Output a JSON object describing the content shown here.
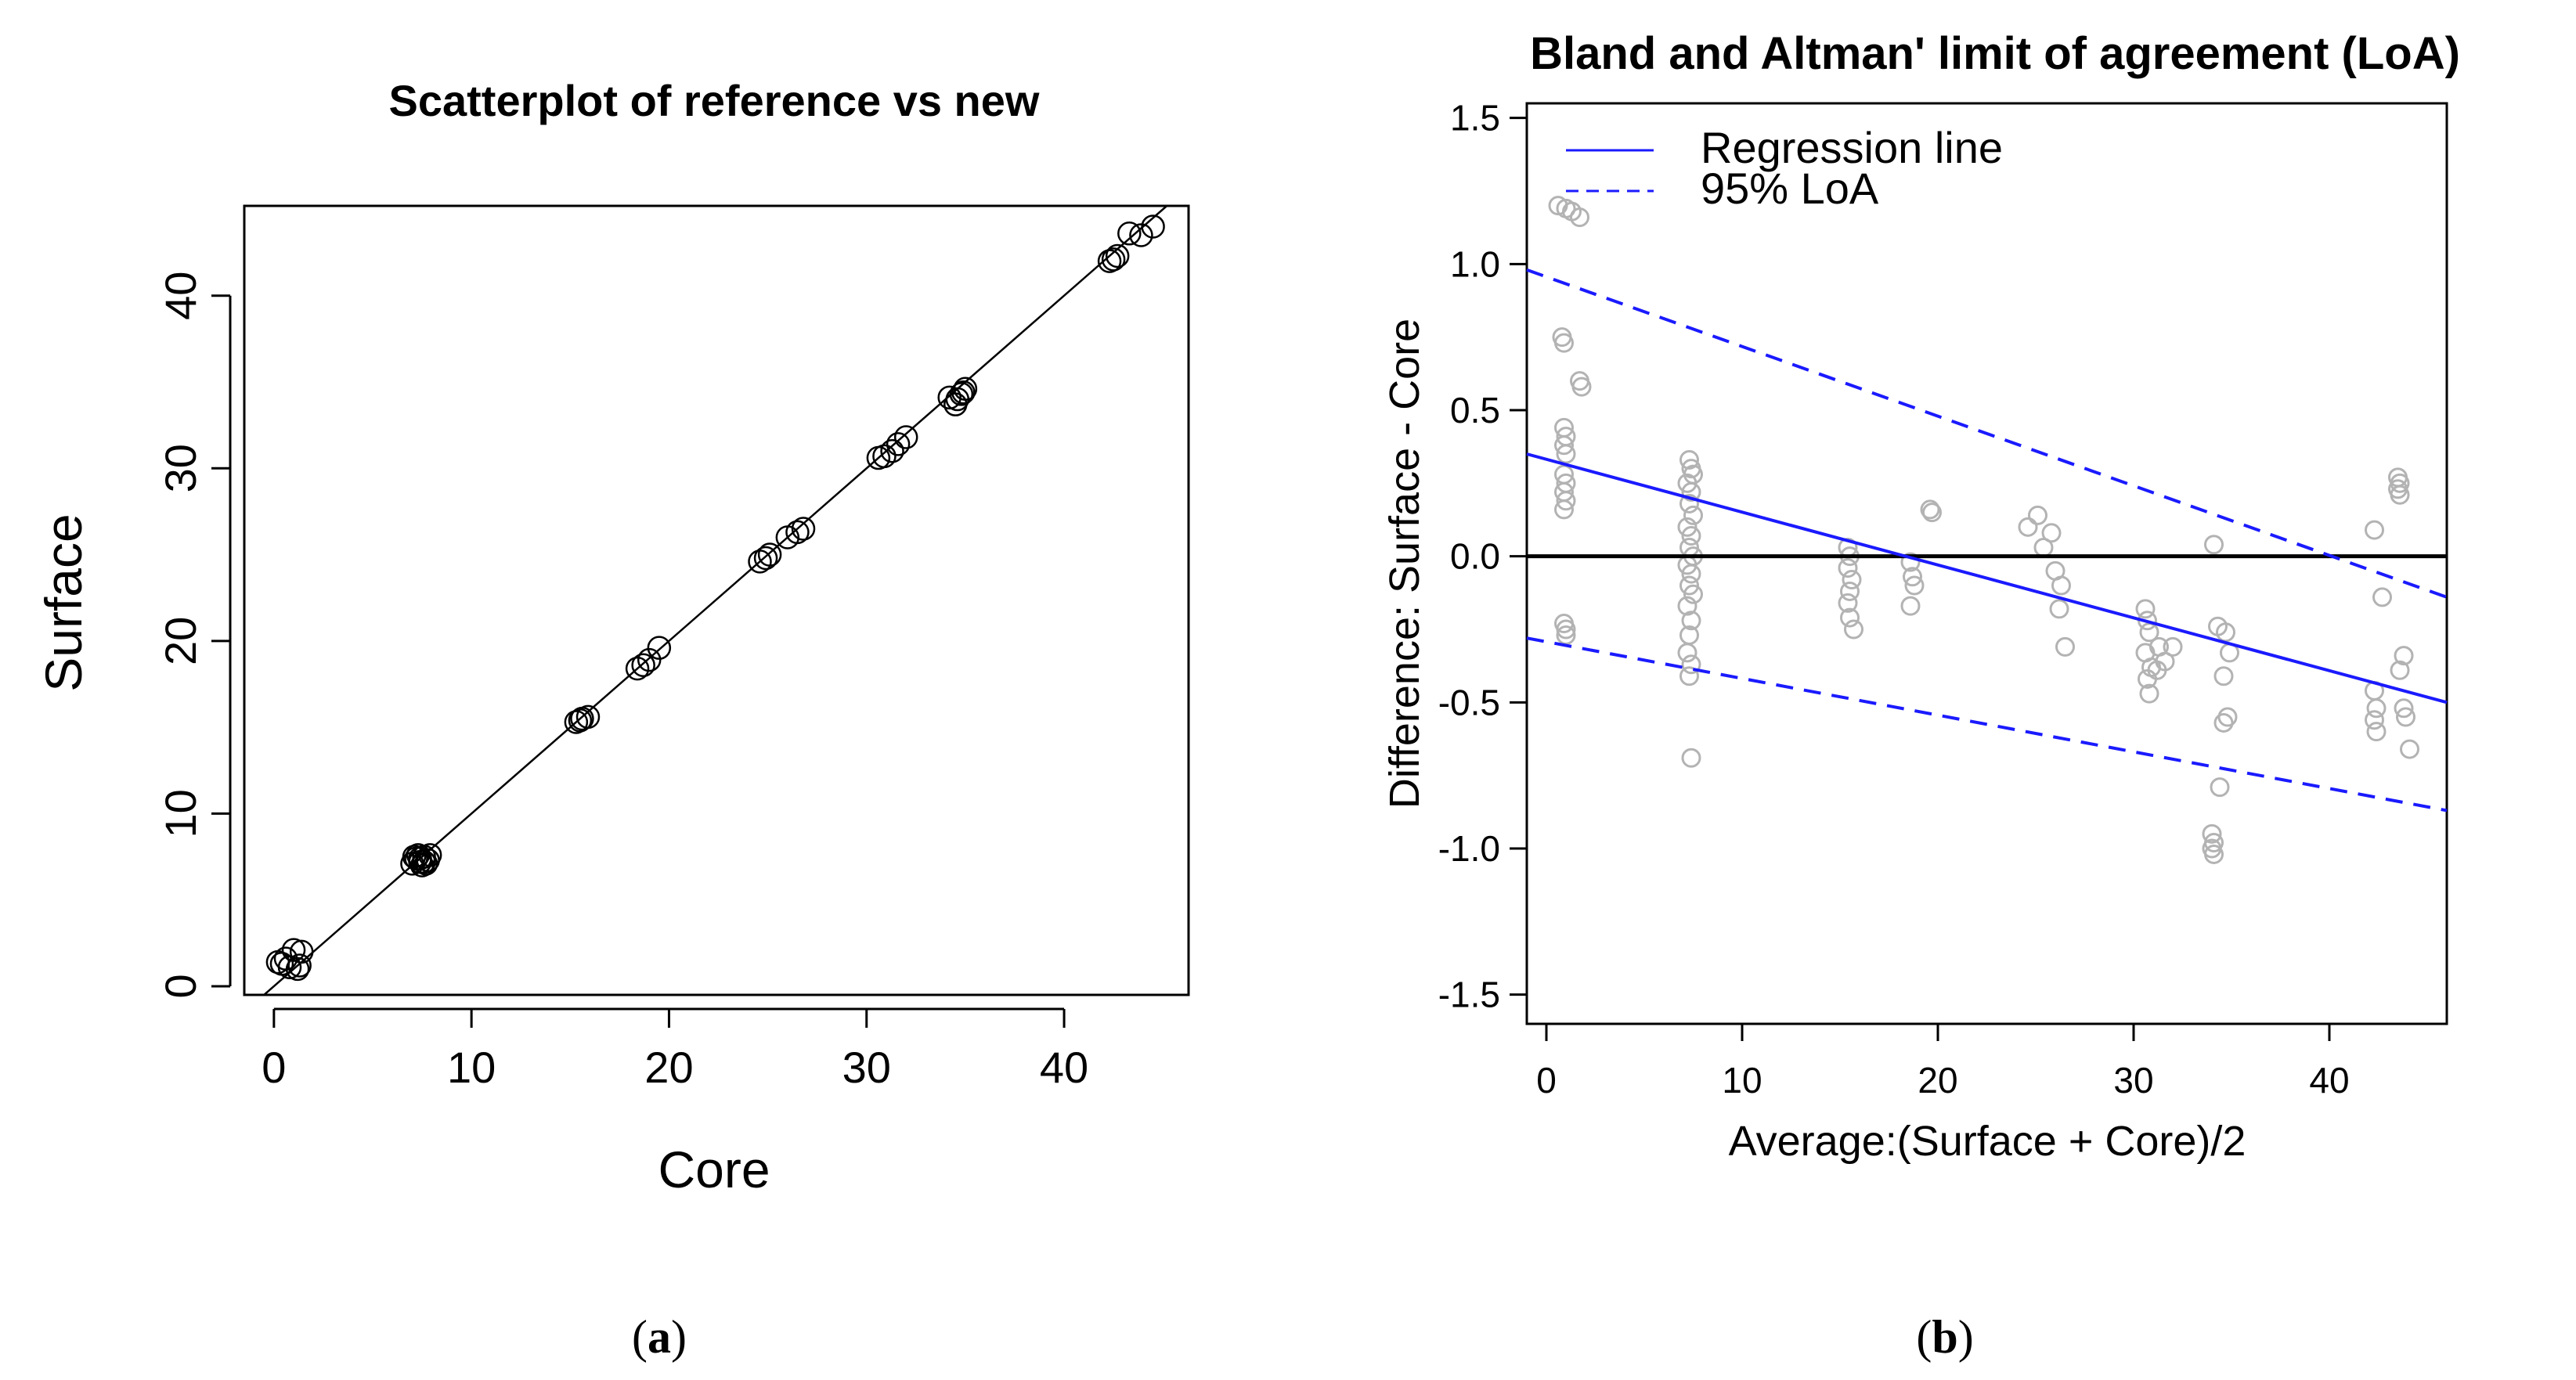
{
  "chart_data": [
    {
      "type": "scatter",
      "panel_label_open": "(",
      "panel_label_letter": "a",
      "panel_label_close": ")",
      "title": "Scatterplot of reference vs new",
      "xlabel": "Core",
      "ylabel": "Surface",
      "xlim": [
        -1.5,
        46.3
      ],
      "ylim": [
        -0.5,
        45.2
      ],
      "xticks": [
        0,
        10,
        20,
        30,
        40
      ],
      "yticks": [
        0,
        10,
        20,
        30,
        40
      ],
      "identity_line": {
        "slope": 1,
        "intercept": 0
      },
      "series": [
        {
          "name": "observations",
          "marker": "open-circle",
          "color": "#000000",
          "points": [
            [
              0.2,
              1.4
            ],
            [
              0.6,
              1.6
            ],
            [
              1.0,
              2.1
            ],
            [
              1.3,
              1.2
            ],
            [
              0.8,
              1.1
            ],
            [
              1.4,
              2.0
            ],
            [
              1.2,
              1.0
            ],
            [
              0.4,
              1.3
            ],
            [
              7.0,
              7.1
            ],
            [
              7.2,
              7.4
            ],
            [
              7.4,
              7.2
            ],
            [
              7.6,
              7.5
            ],
            [
              7.8,
              7.3
            ],
            [
              7.3,
              7.6
            ],
            [
              7.5,
              7.0
            ],
            [
              7.1,
              7.5
            ],
            [
              7.7,
              7.1
            ],
            [
              7.9,
              7.6
            ],
            [
              7.4,
              7.4
            ],
            [
              7.6,
              7.2
            ],
            [
              15.3,
              15.3
            ],
            [
              15.6,
              15.5
            ],
            [
              15.9,
              15.6
            ],
            [
              15.5,
              15.4
            ],
            [
              18.4,
              18.4
            ],
            [
              18.7,
              18.6
            ],
            [
              19.0,
              18.9
            ],
            [
              19.5,
              19.6
            ],
            [
              24.6,
              24.6
            ],
            [
              25.1,
              25.0
            ],
            [
              26.0,
              26.0
            ],
            [
              26.5,
              26.3
            ],
            [
              26.8,
              26.5
            ],
            [
              24.9,
              24.8
            ],
            [
              30.6,
              30.6
            ],
            [
              30.9,
              30.7
            ],
            [
              31.3,
              31.0
            ],
            [
              31.6,
              31.4
            ],
            [
              32.0,
              31.8
            ],
            [
              34.2,
              34.1
            ],
            [
              34.5,
              33.7
            ],
            [
              34.8,
              34.3
            ],
            [
              35.0,
              34.6
            ],
            [
              34.9,
              34.4
            ],
            [
              34.6,
              34.0
            ],
            [
              42.3,
              42.0
            ],
            [
              42.7,
              42.3
            ],
            [
              43.3,
              43.6
            ],
            [
              43.9,
              43.5
            ],
            [
              44.5,
              44.0
            ],
            [
              42.5,
              42.1
            ]
          ]
        }
      ]
    },
    {
      "type": "scatter",
      "panel_label_open": "(",
      "panel_label_letter": "b",
      "panel_label_close": ")",
      "title": "Bland and Altman' limit of agreement (LoA)",
      "xlabel": "Average:(Surface + Core)/2",
      "ylabel": "Difference: Surface - Core",
      "xlim": [
        -1,
        46
      ],
      "ylim": [
        -1.6,
        1.55
      ],
      "xticks": [
        0,
        10,
        20,
        30,
        40
      ],
      "yticks": [
        -1.5,
        -1.0,
        -0.5,
        0.0,
        0.5,
        1.0,
        1.5
      ],
      "ytick_labels": [
        "-1.5",
        "-1.0",
        "-0.5",
        "0.0",
        "0.5",
        "1.0",
        "1.5"
      ],
      "legend": {
        "position": "top-left",
        "entries": [
          {
            "label": "Regression line",
            "style": "solid",
            "color": "#1a1aff"
          },
          {
            "label": "95% LoA",
            "style": "dashed",
            "color": "#1a1aff"
          }
        ]
      },
      "zero_line": {
        "y": 0,
        "color": "#000000"
      },
      "regression_line": {
        "x": [
          -1,
          46
        ],
        "y": [
          0.35,
          -0.5
        ]
      },
      "upper_loa": {
        "x": [
          -1,
          46
        ],
        "y": [
          0.98,
          -0.14
        ]
      },
      "lower_loa": {
        "x": [
          -1,
          46
        ],
        "y": [
          -0.28,
          -0.87
        ]
      },
      "series": [
        {
          "name": "differences",
          "marker": "open-circle",
          "color": "#b3b3b3",
          "points": [
            [
              0.6,
              1.2
            ],
            [
              1.0,
              1.19
            ],
            [
              1.3,
              1.18
            ],
            [
              1.7,
              1.16
            ],
            [
              0.8,
              0.75
            ],
            [
              0.9,
              0.73
            ],
            [
              1.7,
              0.6
            ],
            [
              1.8,
              0.58
            ],
            [
              0.9,
              0.44
            ],
            [
              1.0,
              0.41
            ],
            [
              0.9,
              0.38
            ],
            [
              1.0,
              0.35
            ],
            [
              0.9,
              0.28
            ],
            [
              1.0,
              0.25
            ],
            [
              0.9,
              0.22
            ],
            [
              1.0,
              0.19
            ],
            [
              0.9,
              0.16
            ],
            [
              0.9,
              -0.23
            ],
            [
              1.0,
              -0.25
            ],
            [
              1.0,
              -0.27
            ],
            [
              7.3,
              0.33
            ],
            [
              7.4,
              0.3
            ],
            [
              7.5,
              0.28
            ],
            [
              7.2,
              0.25
            ],
            [
              7.4,
              0.22
            ],
            [
              7.3,
              0.18
            ],
            [
              7.5,
              0.14
            ],
            [
              7.2,
              0.1
            ],
            [
              7.4,
              0.07
            ],
            [
              7.3,
              0.03
            ],
            [
              7.5,
              0.0
            ],
            [
              7.2,
              -0.03
            ],
            [
              7.4,
              -0.06
            ],
            [
              7.3,
              -0.1
            ],
            [
              7.5,
              -0.13
            ],
            [
              7.2,
              -0.17
            ],
            [
              7.4,
              -0.22
            ],
            [
              7.3,
              -0.27
            ],
            [
              7.2,
              -0.33
            ],
            [
              7.4,
              -0.37
            ],
            [
              7.3,
              -0.41
            ],
            [
              7.4,
              -0.69
            ],
            [
              15.4,
              0.03
            ],
            [
              15.5,
              0.0
            ],
            [
              15.4,
              -0.04
            ],
            [
              15.6,
              -0.08
            ],
            [
              15.5,
              -0.12
            ],
            [
              15.4,
              -0.16
            ],
            [
              15.5,
              -0.21
            ],
            [
              15.7,
              -0.25
            ],
            [
              18.6,
              -0.02
            ],
            [
              18.7,
              -0.07
            ],
            [
              18.8,
              -0.1
            ],
            [
              18.6,
              -0.17
            ],
            [
              19.6,
              0.16
            ],
            [
              19.7,
              0.15
            ],
            [
              24.6,
              0.1
            ],
            [
              25.1,
              0.14
            ],
            [
              25.8,
              0.08
            ],
            [
              26.0,
              -0.05
            ],
            [
              26.3,
              -0.1
            ],
            [
              26.2,
              -0.18
            ],
            [
              26.5,
              -0.31
            ],
            [
              25.4,
              0.03
            ],
            [
              30.6,
              -0.18
            ],
            [
              30.7,
              -0.22
            ],
            [
              30.8,
              -0.26
            ],
            [
              30.6,
              -0.33
            ],
            [
              30.9,
              -0.38
            ],
            [
              30.7,
              -0.42
            ],
            [
              30.8,
              -0.47
            ],
            [
              31.3,
              -0.31
            ],
            [
              31.6,
              -0.36
            ],
            [
              32.0,
              -0.31
            ],
            [
              31.2,
              -0.39
            ],
            [
              34.1,
              0.04
            ],
            [
              34.3,
              -0.24
            ],
            [
              34.7,
              -0.26
            ],
            [
              34.9,
              -0.33
            ],
            [
              34.6,
              -0.41
            ],
            [
              34.8,
              -0.55
            ],
            [
              34.6,
              -0.57
            ],
            [
              34.4,
              -0.79
            ],
            [
              34.0,
              -0.95
            ],
            [
              34.1,
              -0.98
            ],
            [
              34.0,
              -1.0
            ],
            [
              34.1,
              -1.02
            ],
            [
              42.3,
              0.09
            ],
            [
              42.7,
              -0.14
            ],
            [
              42.3,
              -0.46
            ],
            [
              42.4,
              -0.52
            ],
            [
              42.3,
              -0.56
            ],
            [
              42.4,
              -0.6
            ],
            [
              43.5,
              0.27
            ],
            [
              43.6,
              0.25
            ],
            [
              43.5,
              0.23
            ],
            [
              43.6,
              0.21
            ],
            [
              43.8,
              -0.34
            ],
            [
              43.6,
              -0.39
            ],
            [
              43.8,
              -0.52
            ],
            [
              43.9,
              -0.55
            ],
            [
              44.1,
              -0.66
            ]
          ]
        }
      ]
    }
  ]
}
